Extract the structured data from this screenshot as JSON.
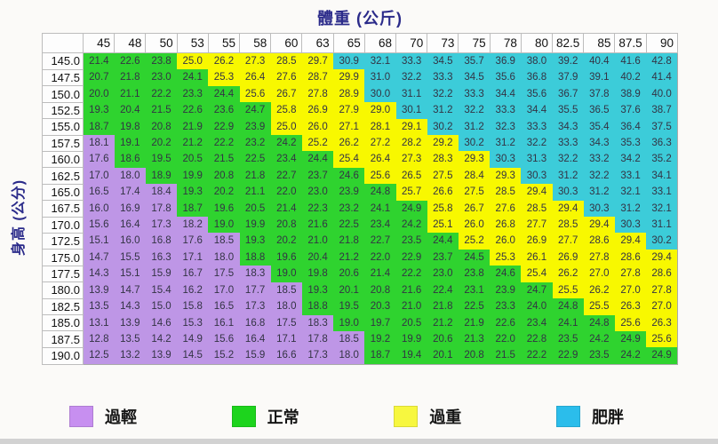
{
  "chart_data": {
    "type": "heatmap",
    "title": "體重 (公斤)",
    "ylabel": "身高 (公分)",
    "legend_position": "bottom",
    "weight_columns_kg": [
      "45",
      "48",
      "50",
      "53",
      "55",
      "58",
      "60",
      "63",
      "65",
      "68",
      "70",
      "73",
      "75",
      "78",
      "80",
      "82.5",
      "85",
      "87.5",
      "90"
    ],
    "height_rows_cm": [
      "145.0",
      "147.5",
      "150.0",
      "152.5",
      "155.0",
      "157.5",
      "160.0",
      "162.5",
      "165.0",
      "167.5",
      "170.0",
      "172.5",
      "175.0",
      "177.5",
      "180.0",
      "182.5",
      "185.0",
      "187.5",
      "190.0"
    ],
    "bmi_values": [
      [
        "21.4",
        "22.6",
        "23.8",
        "25.0",
        "26.2",
        "27.3",
        "28.5",
        "29.7",
        "30.9",
        "32.1",
        "33.3",
        "34.5",
        "35.7",
        "36.9",
        "38.0",
        "39.2",
        "40.4",
        "41.6",
        "42.8"
      ],
      [
        "20.7",
        "21.8",
        "23.0",
        "24.1",
        "25.3",
        "26.4",
        "27.6",
        "28.7",
        "29.9",
        "31.0",
        "32.2",
        "33.3",
        "34.5",
        "35.6",
        "36.8",
        "37.9",
        "39.1",
        "40.2",
        "41.4"
      ],
      [
        "20.0",
        "21.1",
        "22.2",
        "23.3",
        "24.4",
        "25.6",
        "26.7",
        "27.8",
        "28.9",
        "30.0",
        "31.1",
        "32.2",
        "33.3",
        "34.4",
        "35.6",
        "36.7",
        "37.8",
        "38.9",
        "40.0"
      ],
      [
        "19.3",
        "20.4",
        "21.5",
        "22.6",
        "23.6",
        "24.7",
        "25.8",
        "26.9",
        "27.9",
        "29.0",
        "30.1",
        "31.2",
        "32.2",
        "33.3",
        "34.4",
        "35.5",
        "36.5",
        "37.6",
        "38.7"
      ],
      [
        "18.7",
        "19.8",
        "20.8",
        "21.9",
        "22.9",
        "23.9",
        "25.0",
        "26.0",
        "27.1",
        "28.1",
        "29.1",
        "30.2",
        "31.2",
        "32.3",
        "33.3",
        "34.3",
        "35.4",
        "36.4",
        "37.5"
      ],
      [
        "18.1",
        "19.1",
        "20.2",
        "21.2",
        "22.2",
        "23.2",
        "24.2",
        "25.2",
        "26.2",
        "27.2",
        "28.2",
        "29.2",
        "30.2",
        "31.2",
        "32.2",
        "33.3",
        "34.3",
        "35.3",
        "36.3"
      ],
      [
        "17.6",
        "18.6",
        "19.5",
        "20.5",
        "21.5",
        "22.5",
        "23.4",
        "24.4",
        "25.4",
        "26.4",
        "27.3",
        "28.3",
        "29.3",
        "30.3",
        "31.3",
        "32.2",
        "33.2",
        "34.2",
        "35.2"
      ],
      [
        "17.0",
        "18.0",
        "18.9",
        "19.9",
        "20.8",
        "21.8",
        "22.7",
        "23.7",
        "24.6",
        "25.6",
        "26.5",
        "27.5",
        "28.4",
        "29.3",
        "30.3",
        "31.2",
        "32.2",
        "33.1",
        "34.1"
      ],
      [
        "16.5",
        "17.4",
        "18.4",
        "19.3",
        "20.2",
        "21.1",
        "22.0",
        "23.0",
        "23.9",
        "24.8",
        "25.7",
        "26.6",
        "27.5",
        "28.5",
        "29.4",
        "30.3",
        "31.2",
        "32.1",
        "33.1"
      ],
      [
        "16.0",
        "16.9",
        "17.8",
        "18.7",
        "19.6",
        "20.5",
        "21.4",
        "22.3",
        "23.2",
        "24.1",
        "24.9",
        "25.8",
        "26.7",
        "27.6",
        "28.5",
        "29.4",
        "30.3",
        "31.2",
        "32.1"
      ],
      [
        "15.6",
        "16.4",
        "17.3",
        "18.2",
        "19.0",
        "19.9",
        "20.8",
        "21.6",
        "22.5",
        "23.4",
        "24.2",
        "25.1",
        "26.0",
        "26.8",
        "27.7",
        "28.5",
        "29.4",
        "30.3",
        "31.1"
      ],
      [
        "15.1",
        "16.0",
        "16.8",
        "17.6",
        "18.5",
        "19.3",
        "20.2",
        "21.0",
        "21.8",
        "22.7",
        "23.5",
        "24.4",
        "25.2",
        "26.0",
        "26.9",
        "27.7",
        "28.6",
        "29.4",
        "30.2"
      ],
      [
        "14.7",
        "15.5",
        "16.3",
        "17.1",
        "18.0",
        "18.8",
        "19.6",
        "20.4",
        "21.2",
        "22.0",
        "22.9",
        "23.7",
        "24.5",
        "25.3",
        "26.1",
        "26.9",
        "27.8",
        "28.6",
        "29.4"
      ],
      [
        "14.3",
        "15.1",
        "15.9",
        "16.7",
        "17.5",
        "18.3",
        "19.0",
        "19.8",
        "20.6",
        "21.4",
        "22.2",
        "23.0",
        "23.8",
        "24.6",
        "25.4",
        "26.2",
        "27.0",
        "27.8",
        "28.6"
      ],
      [
        "13.9",
        "14.7",
        "15.4",
        "16.2",
        "17.0",
        "17.7",
        "18.5",
        "19.3",
        "20.1",
        "20.8",
        "21.6",
        "22.4",
        "23.1",
        "23.9",
        "24.7",
        "25.5",
        "26.2",
        "27.0",
        "27.8"
      ],
      [
        "13.5",
        "14.3",
        "15.0",
        "15.8",
        "16.5",
        "17.3",
        "18.0",
        "18.8",
        "19.5",
        "20.3",
        "21.0",
        "21.8",
        "22.5",
        "23.3",
        "24.0",
        "24.8",
        "25.5",
        "26.3",
        "27.0"
      ],
      [
        "13.1",
        "13.9",
        "14.6",
        "15.3",
        "16.1",
        "16.8",
        "17.5",
        "18.3",
        "19.0",
        "19.7",
        "20.5",
        "21.2",
        "21.9",
        "22.6",
        "23.4",
        "24.1",
        "24.8",
        "25.6",
        "26.3"
      ],
      [
        "12.8",
        "13.5",
        "14.2",
        "14.9",
        "15.6",
        "16.4",
        "17.1",
        "17.8",
        "18.5",
        "19.2",
        "19.9",
        "20.6",
        "21.3",
        "22.0",
        "22.8",
        "23.5",
        "24.2",
        "24.9",
        "25.6"
      ],
      [
        "12.5",
        "13.2",
        "13.9",
        "14.5",
        "15.2",
        "15.9",
        "16.6",
        "17.3",
        "18.0",
        "18.7",
        "19.4",
        "20.1",
        "20.8",
        "21.5",
        "22.2",
        "22.9",
        "23.5",
        "24.2",
        "24.9"
      ]
    ],
    "categories": [
      {
        "name": "underweight",
        "label": "過輕",
        "swatch_color": "#C78FF0",
        "cell_color": "#BE96E6"
      },
      {
        "name": "normal",
        "label": "正常",
        "swatch_color": "#1DD41D",
        "cell_color": "#2FD32F"
      },
      {
        "name": "overweight",
        "label": "過重",
        "swatch_color": "#F7F73F",
        "cell_color": "#F8F800"
      },
      {
        "name": "obese",
        "label": "肥胖",
        "swatch_color": "#2BBDEB",
        "cell_color": "#3CCCD9"
      }
    ],
    "thresholds": {
      "underweight_max": 18.5,
      "normal_max": 24.9,
      "overweight_max": 29.9
    }
  }
}
